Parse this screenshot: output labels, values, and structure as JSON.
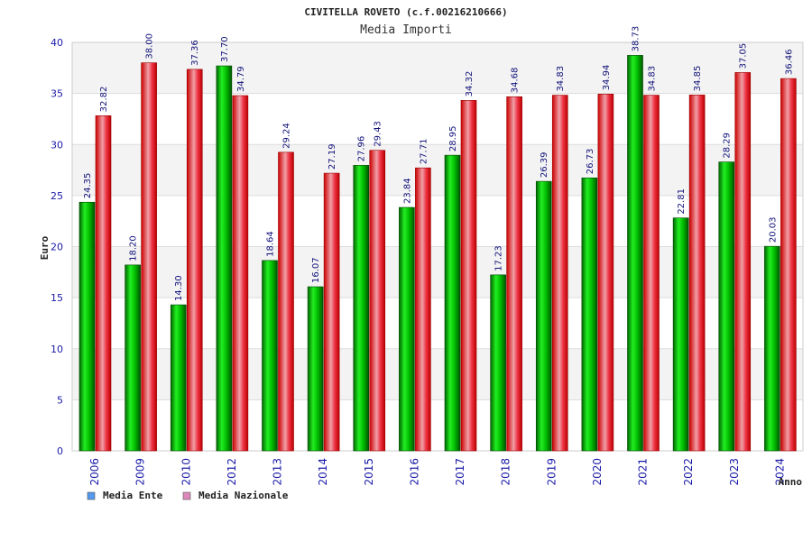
{
  "chart_data": {
    "type": "bar",
    "title": "CIVITELLA ROVETO (c.f.00216210666)",
    "subtitle": "Media Importi",
    "xlabel": "Anno",
    "ylabel": "Euro",
    "ylim": [
      0,
      40
    ],
    "yticks": [
      0,
      5,
      10,
      15,
      20,
      25,
      30,
      35,
      40
    ],
    "grid": true,
    "legend_position": "bottom-left",
    "categories": [
      "2006",
      "2009",
      "2010",
      "2012",
      "2013",
      "2014",
      "2015",
      "2016",
      "2017",
      "2018",
      "2019",
      "2020",
      "2021",
      "2022",
      "2023",
      "2024"
    ],
    "series": [
      {
        "name": "Media Ente",
        "color": "#00aa00",
        "legend_color": "#5599ee",
        "values": [
          24.35,
          18.2,
          14.3,
          37.7,
          18.64,
          16.07,
          27.96,
          23.84,
          28.95,
          17.23,
          26.39,
          26.73,
          38.73,
          22.81,
          28.29,
          20.03
        ],
        "labels": [
          "24.35",
          "18.20",
          "14.30",
          "37.70",
          "18.64",
          "16.07",
          "27.96",
          "23.84",
          "28.95",
          "17.23",
          "26.39",
          "26.73",
          "38.73",
          "22.81",
          "28.29",
          "20.03"
        ]
      },
      {
        "name": "Media Nazionale",
        "color": "#ee1111",
        "legend_color": "#dd88bb",
        "values": [
          32.82,
          38.0,
          37.36,
          34.79,
          29.24,
          27.19,
          29.43,
          27.71,
          34.32,
          34.68,
          34.83,
          34.94,
          34.83,
          34.85,
          37.05,
          36.46
        ],
        "labels": [
          "32.82",
          "38.00",
          "37.36",
          "34.79",
          "29.24",
          "27.19",
          "29.43",
          "27.71",
          "34.32",
          "34.68",
          "34.83",
          "34.94",
          "34.83",
          "34.85",
          "37.05",
          "36.46"
        ]
      }
    ]
  }
}
